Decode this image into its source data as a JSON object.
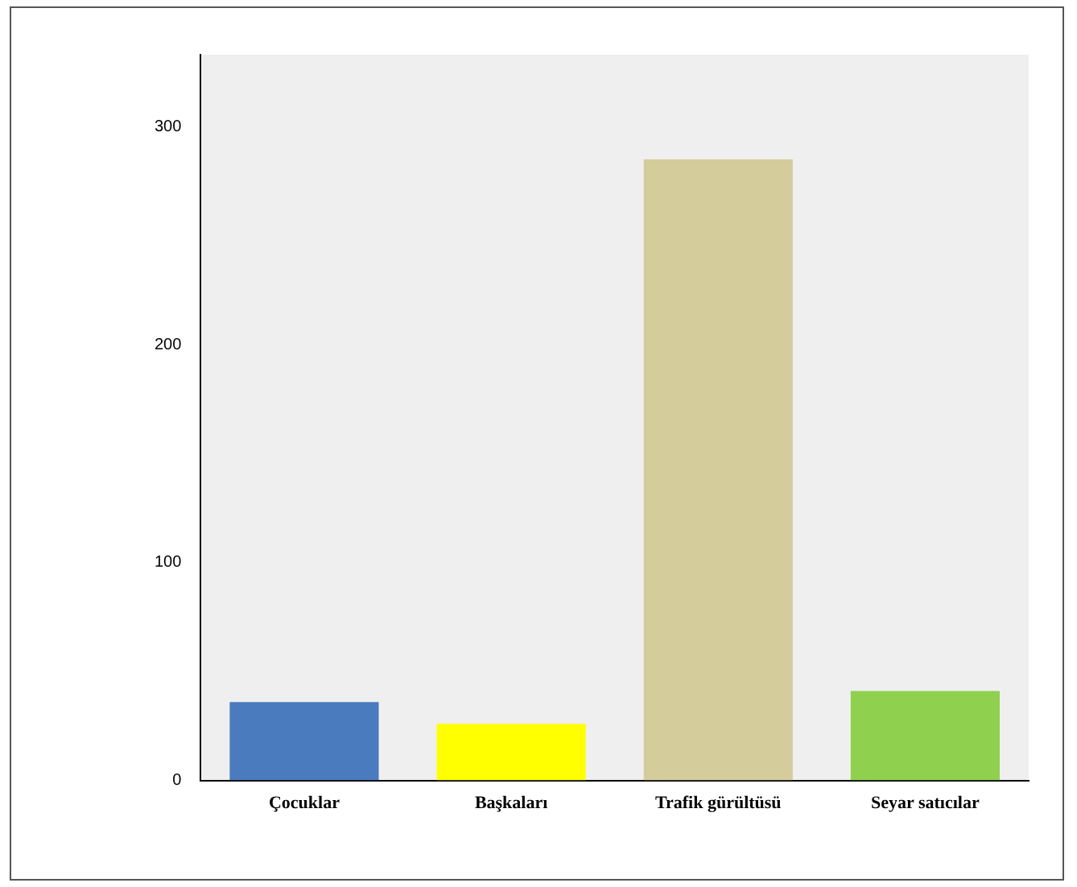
{
  "chart_data": {
    "type": "bar",
    "categories": [
      "Çocuklar",
      "Başkaları",
      "Trafik gürültüsü",
      "Seyar satıcılar"
    ],
    "values": [
      36,
      26,
      285,
      41
    ],
    "colors": [
      "#4a7bbf",
      "#ffff00",
      "#d4cc9a",
      "#8fd14f"
    ],
    "ylim": [
      0,
      333
    ],
    "yticks": [
      0,
      100,
      200,
      300
    ],
    "grid": false,
    "legend": false
  }
}
